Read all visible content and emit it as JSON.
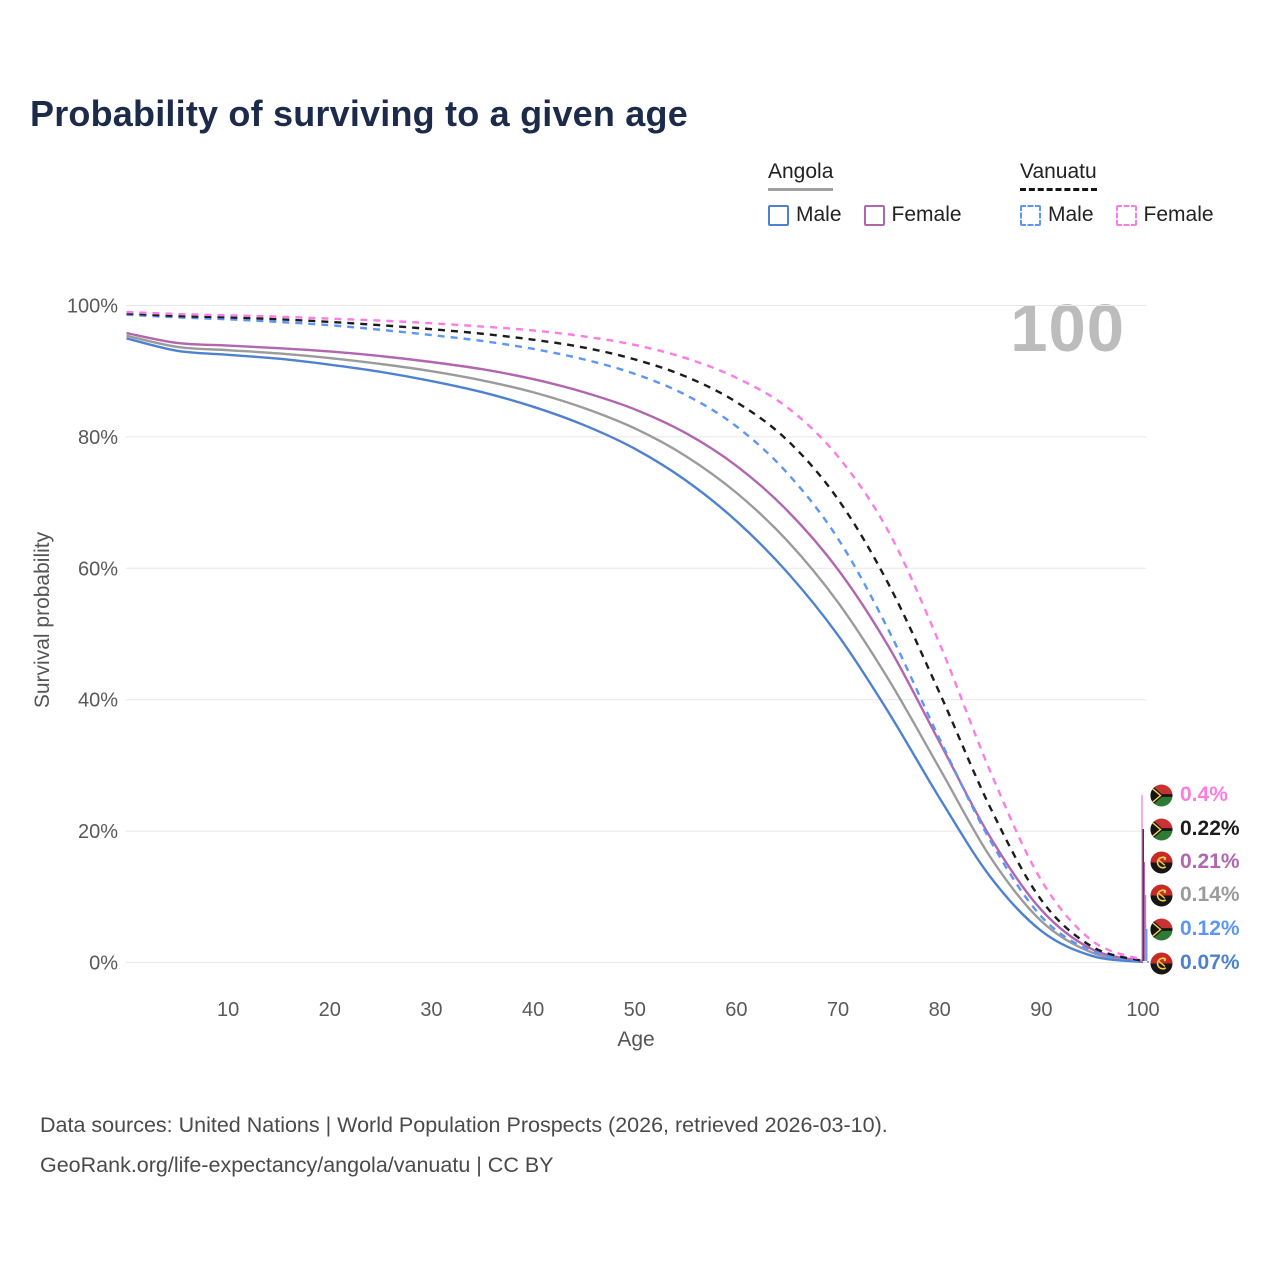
{
  "title": "Probability of surviving to a given age",
  "watermark": "100",
  "legend": {
    "groups": [
      {
        "name": "Angola",
        "style": "solid",
        "underline_color": "#9f9f9f",
        "items": [
          {
            "label": "Male",
            "color": "#4f81d1",
            "dashed": false
          },
          {
            "label": "Female",
            "color": "#b266b0",
            "dashed": false
          }
        ]
      },
      {
        "name": "Vanuatu",
        "style": "dashed",
        "underline_color": "#151515",
        "items": [
          {
            "label": "Male",
            "color": "#5d96f5",
            "dashed": true
          },
          {
            "label": "Female",
            "color": "#fb7de4",
            "dashed": true
          }
        ]
      }
    ]
  },
  "chart_data": {
    "type": "line",
    "title": "Probability of surviving to a given age",
    "xlabel": "Age",
    "ylabel": "Survival probability",
    "xlim": [
      0,
      100
    ],
    "ylim": [
      0,
      100
    ],
    "grid": "horizontal",
    "legend_position": "top-right",
    "x_ticks": [
      {
        "value": 10,
        "label": "10"
      },
      {
        "value": 20,
        "label": "20"
      },
      {
        "value": 30,
        "label": "30"
      },
      {
        "value": 40,
        "label": "40"
      },
      {
        "value": 50,
        "label": "50"
      },
      {
        "value": 60,
        "label": "60"
      },
      {
        "value": 70,
        "label": "70"
      },
      {
        "value": 80,
        "label": "80"
      },
      {
        "value": 90,
        "label": "90"
      },
      {
        "value": 100,
        "label": "100"
      }
    ],
    "y_ticks": [
      {
        "value": 0,
        "label": "0%"
      },
      {
        "value": 20,
        "label": "20%"
      },
      {
        "value": 40,
        "label": "40%"
      },
      {
        "value": 60,
        "label": "60%"
      },
      {
        "value": 80,
        "label": "80%"
      },
      {
        "value": 100,
        "label": "100%"
      }
    ],
    "x": [
      0,
      5,
      10,
      15,
      20,
      25,
      30,
      35,
      40,
      45,
      50,
      55,
      60,
      65,
      70,
      75,
      80,
      85,
      90,
      95,
      100
    ],
    "series": [
      {
        "name": "Angola Both sexes",
        "country": "Angola",
        "sex": "Both",
        "color": "#9b9b9b",
        "dashed": false,
        "end_value": "0.14%",
        "values": [
          95.4,
          93.7,
          93.2,
          92.7,
          92.0,
          91.1,
          90.0,
          88.6,
          86.8,
          84.4,
          81.3,
          77.1,
          71.5,
          64.2,
          54.8,
          43.0,
          29.5,
          16.0,
          6.3,
          1.5,
          0.14
        ]
      },
      {
        "name": "Angola Male",
        "country": "Angola",
        "sex": "Male",
        "color": "#4f81d1",
        "dashed": false,
        "end_value": "0.07%",
        "values": [
          95.0,
          93.1,
          92.5,
          91.9,
          91.0,
          89.9,
          88.5,
          86.8,
          84.6,
          81.8,
          78.2,
          73.4,
          67.2,
          59.4,
          49.8,
          38.0,
          25.0,
          13.0,
          4.8,
          1.0,
          0.07
        ]
      },
      {
        "name": "Angola Female",
        "country": "Angola",
        "sex": "Female",
        "color": "#b266b0",
        "dashed": false,
        "end_value": "0.21%",
        "values": [
          95.8,
          94.3,
          93.9,
          93.5,
          93.0,
          92.3,
          91.4,
          90.3,
          88.8,
          86.8,
          84.2,
          80.6,
          75.6,
          68.8,
          59.8,
          48.0,
          33.5,
          19.0,
          8.0,
          2.0,
          0.21
        ]
      },
      {
        "name": "Vanuatu Male",
        "country": "Vanuatu",
        "sex": "Male",
        "color": "#5d96f5",
        "dashed": true,
        "end_value": "0.12%",
        "values": [
          98.6,
          98.2,
          97.9,
          97.5,
          97.0,
          96.3,
          95.5,
          94.6,
          93.4,
          91.8,
          89.6,
          86.4,
          81.6,
          74.5,
          64.5,
          50.5,
          34.0,
          18.5,
          7.0,
          1.7,
          0.12
        ]
      },
      {
        "name": "Vanuatu Both sexes",
        "country": "Vanuatu",
        "sex": "Both",
        "color": "#1c1c1c",
        "dashed": true,
        "end_value": "0.22%",
        "values": [
          98.8,
          98.4,
          98.2,
          97.9,
          97.5,
          97.0,
          96.4,
          95.7,
          94.8,
          93.6,
          91.8,
          89.2,
          85.3,
          79.5,
          70.5,
          57.5,
          41.0,
          23.5,
          9.5,
          2.4,
          0.22
        ]
      },
      {
        "name": "Vanuatu Female",
        "country": "Vanuatu",
        "sex": "Female",
        "color": "#fb7de4",
        "dashed": true,
        "end_value": "0.4%",
        "values": [
          99.0,
          98.7,
          98.5,
          98.3,
          98.0,
          97.7,
          97.3,
          96.8,
          96.2,
          95.3,
          94.0,
          92.0,
          89.0,
          84.5,
          77.0,
          65.5,
          48.5,
          29.0,
          12.5,
          3.3,
          0.4
        ]
      }
    ]
  },
  "end_labels": [
    {
      "value": "0.4%",
      "color": "#fb7de4",
      "flag": "vanuatu"
    },
    {
      "value": "0.22%",
      "color": "#1c1c1c",
      "flag": "vanuatu"
    },
    {
      "value": "0.21%",
      "color": "#b266b0",
      "flag": "angola"
    },
    {
      "value": "0.14%",
      "color": "#9b9b9b",
      "flag": "angola"
    },
    {
      "value": "0.12%",
      "color": "#5d96f5",
      "flag": "vanuatu"
    },
    {
      "value": "0.07%",
      "color": "#4f81d1",
      "flag": "angola"
    }
  ],
  "footer": {
    "line1": "Data sources: United Nations | World Population Prospects (2026, retrieved 2026-03-10).",
    "line2": "GeoRank.org/life-expectancy/angola/vanuatu | CC BY"
  }
}
